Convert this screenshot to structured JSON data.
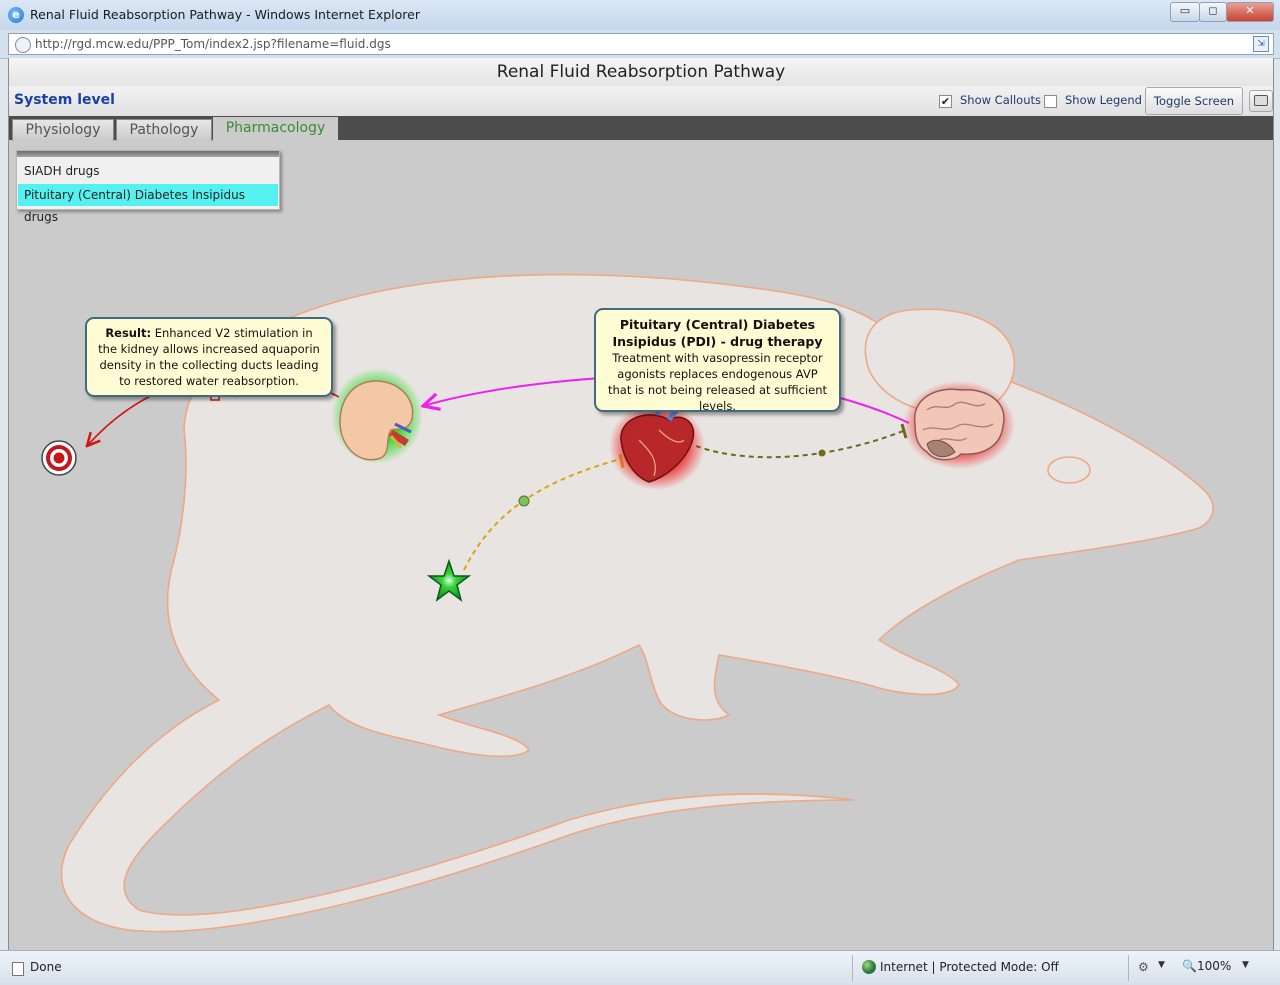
{
  "window": {
    "title": "Renal Fluid Reabsorption Pathway - Windows Internet Explorer",
    "address": "http://rgd.mcw.edu/PPP_Tom/index2.jsp?filename=fluid.dgs",
    "min_label": "▭",
    "max_label": "◻",
    "close_label": "✕"
  },
  "app": {
    "title": "Renal Fluid Reabsorption Pathway",
    "system_level": "System level",
    "show_callouts": {
      "label": "Show Callouts",
      "checked": true,
      "mark": "✔"
    },
    "show_legend": {
      "label": "Show Legend",
      "checked": false
    },
    "toggle_screen": "Toggle Screen",
    "tabs": [
      {
        "label": "Physiology",
        "active": false
      },
      {
        "label": "Pathology",
        "active": false
      },
      {
        "label": "Pharmacology",
        "active": true
      }
    ],
    "drug_list": [
      {
        "label": "SIADH drugs",
        "selected": false
      },
      {
        "label": "Pituitary (Central) Diabetes Insipidus drugs",
        "selected": true
      }
    ]
  },
  "callouts": {
    "result": {
      "label": "Result:",
      "text": "Enhanced V2 stimulation in the kidney allows increased aquaporin density in the collecting ducts leading to restored water reabsorption."
    },
    "pdi": {
      "title": "Pituitary (Central) Diabetes Insipidus (PDI) - drug therapy",
      "text": "Treatment with vasopressin receptor agonists replaces endogenous AVP that is not being released at sufficient levels."
    }
  },
  "diagram": {
    "nodes": [
      {
        "name": "target-icon",
        "kind": "target"
      },
      {
        "name": "kidney-icon",
        "kind": "organ",
        "glow": "#22dd22"
      },
      {
        "name": "heart-icon",
        "kind": "organ",
        "glow": "#ee2222"
      },
      {
        "name": "brain-icon",
        "kind": "organ",
        "glow": "#ee2222"
      },
      {
        "name": "drug-star-icon",
        "kind": "drug"
      }
    ],
    "colors": {
      "kidney_to_target": "#d01818",
      "brain_to_kidney": "#ee22ee",
      "heart_brain": "#6b6b1e",
      "star_heart": "#d9a316",
      "background": "#cbcbcb"
    }
  },
  "status": {
    "text": "Done",
    "zone": "Internet | Protected Mode: Off",
    "zoom": "100%"
  }
}
